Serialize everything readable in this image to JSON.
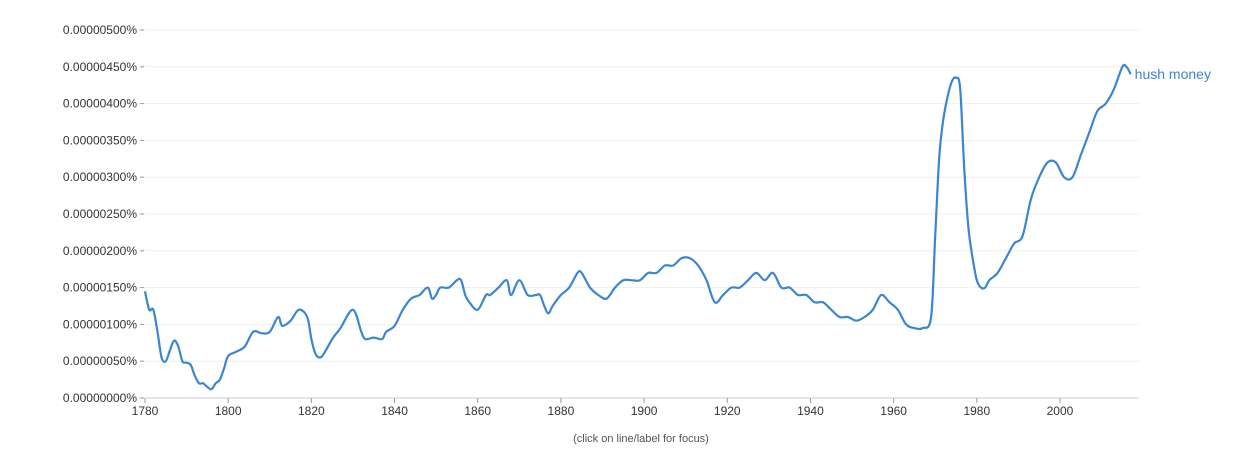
{
  "chart_data": {
    "type": "line",
    "xlim": [
      1780,
      2019
    ],
    "ylim": [
      0,
      5e-06
    ],
    "y_ticks": [
      {
        "value": 0,
        "label": "0.00000000%"
      },
      {
        "value": 5e-07,
        "label": "0.00000050%"
      },
      {
        "value": 1e-06,
        "label": "0.00000100%"
      },
      {
        "value": 1.5e-06,
        "label": "0.00000150%"
      },
      {
        "value": 2e-06,
        "label": "0.00000200%"
      },
      {
        "value": 2.5e-06,
        "label": "0.00000250%"
      },
      {
        "value": 3e-06,
        "label": "0.00000300%"
      },
      {
        "value": 3.5e-06,
        "label": "0.00000350%"
      },
      {
        "value": 4e-06,
        "label": "0.00000400%"
      },
      {
        "value": 4.5e-06,
        "label": "0.00000450%"
      },
      {
        "value": 5e-06,
        "label": "0.00000500%"
      }
    ],
    "x_ticks": [
      {
        "value": 1780,
        "label": "1780"
      },
      {
        "value": 1800,
        "label": "1800"
      },
      {
        "value": 1820,
        "label": "1820"
      },
      {
        "value": 1840,
        "label": "1840"
      },
      {
        "value": 1860,
        "label": "1860"
      },
      {
        "value": 1880,
        "label": "1880"
      },
      {
        "value": 1900,
        "label": "1900"
      },
      {
        "value": 1920,
        "label": "1920"
      },
      {
        "value": 1940,
        "label": "1940"
      },
      {
        "value": 1960,
        "label": "1960"
      },
      {
        "value": 1980,
        "label": "1980"
      },
      {
        "value": 2000,
        "label": "2000"
      }
    ],
    "grid": true,
    "series": [
      {
        "name": "hush money",
        "color": "#3b86d0",
        "points": [
          [
            1780,
            1.45e-06
          ],
          [
            1781,
            1.2e-06
          ],
          [
            1782,
            1.2e-06
          ],
          [
            1783,
            9e-07
          ],
          [
            1784,
            5.5e-07
          ],
          [
            1785,
            5e-07
          ],
          [
            1786,
            6.5e-07
          ],
          [
            1787,
            7.8e-07
          ],
          [
            1788,
            7e-07
          ],
          [
            1789,
            5e-07
          ],
          [
            1790,
            4.8e-07
          ],
          [
            1791,
            4.5e-07
          ],
          [
            1792,
            3e-07
          ],
          [
            1793,
            2e-07
          ],
          [
            1794,
            2e-07
          ],
          [
            1795,
            1.5e-07
          ],
          [
            1796,
            1.2e-07
          ],
          [
            1797,
            2e-07
          ],
          [
            1798,
            2.5e-07
          ],
          [
            1799,
            4e-07
          ],
          [
            1800,
            5.7e-07
          ],
          [
            1802,
            6.3e-07
          ],
          [
            1804,
            7e-07
          ],
          [
            1806,
            9e-07
          ],
          [
            1808,
            8.8e-07
          ],
          [
            1810,
            9e-07
          ],
          [
            1812,
            1.1e-06
          ],
          [
            1813,
            9.8e-07
          ],
          [
            1815,
            1.05e-06
          ],
          [
            1817,
            1.2e-06
          ],
          [
            1819,
            1.1e-06
          ],
          [
            1820,
            8e-07
          ],
          [
            1821,
            6e-07
          ],
          [
            1822,
            5.5e-07
          ],
          [
            1823,
            6e-07
          ],
          [
            1825,
            8e-07
          ],
          [
            1827,
            9.5e-07
          ],
          [
            1830,
            1.2e-06
          ],
          [
            1832,
            9e-07
          ],
          [
            1833,
            8e-07
          ],
          [
            1835,
            8.2e-07
          ],
          [
            1837,
            8e-07
          ],
          [
            1838,
            9e-07
          ],
          [
            1840,
            9.8e-07
          ],
          [
            1842,
            1.2e-06
          ],
          [
            1844,
            1.35e-06
          ],
          [
            1846,
            1.4e-06
          ],
          [
            1848,
            1.5e-06
          ],
          [
            1849,
            1.35e-06
          ],
          [
            1850,
            1.4e-06
          ],
          [
            1851,
            1.5e-06
          ],
          [
            1853,
            1.5e-06
          ],
          [
            1855,
            1.6e-06
          ],
          [
            1856,
            1.6e-06
          ],
          [
            1857,
            1.4e-06
          ],
          [
            1858,
            1.3e-06
          ],
          [
            1860,
            1.2e-06
          ],
          [
            1862,
            1.4e-06
          ],
          [
            1863,
            1.4e-06
          ],
          [
            1865,
            1.5e-06
          ],
          [
            1867,
            1.6e-06
          ],
          [
            1868,
            1.4e-06
          ],
          [
            1870,
            1.6e-06
          ],
          [
            1872,
            1.4e-06
          ],
          [
            1874,
            1.4e-06
          ],
          [
            1875,
            1.4e-06
          ],
          [
            1876,
            1.25e-06
          ],
          [
            1877,
            1.15e-06
          ],
          [
            1878,
            1.25e-06
          ],
          [
            1880,
            1.4e-06
          ],
          [
            1882,
            1.5e-06
          ],
          [
            1884,
            1.7e-06
          ],
          [
            1885,
            1.7e-06
          ],
          [
            1887,
            1.5e-06
          ],
          [
            1889,
            1.4e-06
          ],
          [
            1891,
            1.35e-06
          ],
          [
            1893,
            1.5e-06
          ],
          [
            1895,
            1.6e-06
          ],
          [
            1897,
            1.6e-06
          ],
          [
            1899,
            1.6e-06
          ],
          [
            1901,
            1.7e-06
          ],
          [
            1903,
            1.7e-06
          ],
          [
            1905,
            1.8e-06
          ],
          [
            1907,
            1.8e-06
          ],
          [
            1909,
            1.9e-06
          ],
          [
            1911,
            1.9e-06
          ],
          [
            1913,
            1.8e-06
          ],
          [
            1915,
            1.6e-06
          ],
          [
            1917,
            1.3e-06
          ],
          [
            1919,
            1.4e-06
          ],
          [
            1921,
            1.5e-06
          ],
          [
            1923,
            1.5e-06
          ],
          [
            1925,
            1.6e-06
          ],
          [
            1927,
            1.7e-06
          ],
          [
            1929,
            1.6e-06
          ],
          [
            1931,
            1.7e-06
          ],
          [
            1933,
            1.5e-06
          ],
          [
            1935,
            1.5e-06
          ],
          [
            1937,
            1.4e-06
          ],
          [
            1939,
            1.4e-06
          ],
          [
            1941,
            1.3e-06
          ],
          [
            1943,
            1.3e-06
          ],
          [
            1945,
            1.2e-06
          ],
          [
            1947,
            1.1e-06
          ],
          [
            1949,
            1.1e-06
          ],
          [
            1951,
            1.05e-06
          ],
          [
            1953,
            1.1e-06
          ],
          [
            1955,
            1.2e-06
          ],
          [
            1957,
            1.4e-06
          ],
          [
            1959,
            1.3e-06
          ],
          [
            1961,
            1.2e-06
          ],
          [
            1963,
            1e-06
          ],
          [
            1965,
            9.5e-07
          ],
          [
            1967,
            9.5e-07
          ],
          [
            1969,
            1.1e-06
          ],
          [
            1970,
            2.2e-06
          ],
          [
            1971,
            3.3e-06
          ],
          [
            1972,
            3.8e-06
          ],
          [
            1973,
            4.1e-06
          ],
          [
            1974,
            4.3e-06
          ],
          [
            1975,
            4.35e-06
          ],
          [
            1976,
            4.2e-06
          ],
          [
            1977,
            3.1e-06
          ],
          [
            1978,
            2.3e-06
          ],
          [
            1979,
            1.9e-06
          ],
          [
            1980,
            1.6e-06
          ],
          [
            1981,
            1.5e-06
          ],
          [
            1982,
            1.5e-06
          ],
          [
            1983,
            1.6e-06
          ],
          [
            1985,
            1.7e-06
          ],
          [
            1987,
            1.9e-06
          ],
          [
            1989,
            2.1e-06
          ],
          [
            1991,
            2.2e-06
          ],
          [
            1993,
            2.7e-06
          ],
          [
            1995,
            3e-06
          ],
          [
            1997,
            3.2e-06
          ],
          [
            1999,
            3.2e-06
          ],
          [
            2001,
            3e-06
          ],
          [
            2003,
            3e-06
          ],
          [
            2005,
            3.3e-06
          ],
          [
            2007,
            3.6e-06
          ],
          [
            2009,
            3.9e-06
          ],
          [
            2011,
            4e-06
          ],
          [
            2013,
            4.2e-06
          ],
          [
            2015,
            4.5e-06
          ],
          [
            2016,
            4.5e-06
          ],
          [
            2017,
            4.4e-06
          ]
        ]
      }
    ]
  },
  "footer_note": "(click on line/label for focus)"
}
